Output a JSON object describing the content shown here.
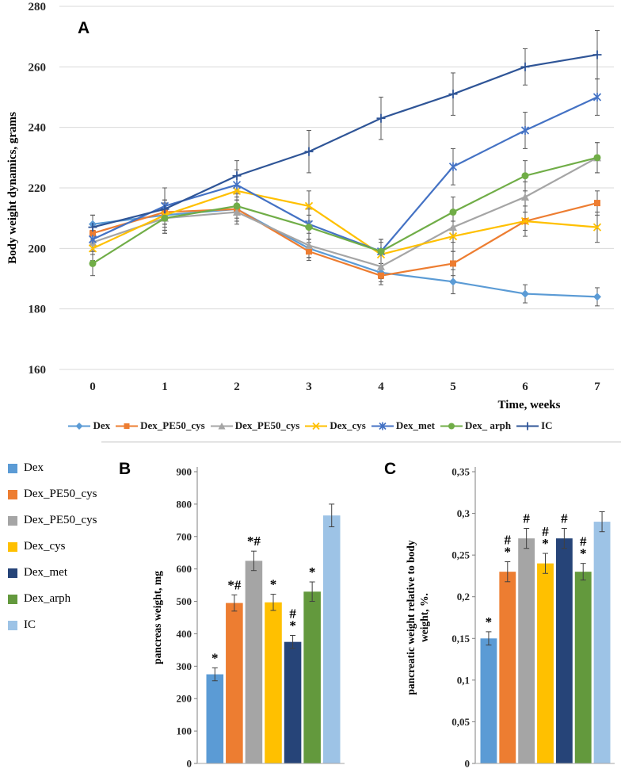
{
  "panels": {
    "a": "A",
    "b": "B",
    "c": "C"
  },
  "side_legend": {
    "items": [
      {
        "label": "Dex",
        "color": "#5B9BD5"
      },
      {
        "label": "Dex_PE50_cys",
        "color": "#ED7D31"
      },
      {
        "label": "Dex_PE50_cys",
        "color": "#A5A5A5"
      },
      {
        "label": "Dex_cys",
        "color": "#FFC000"
      },
      {
        "label": "Dex_met",
        "color": "#264478"
      },
      {
        "label": "Dex_arph",
        "color": "#63993D"
      },
      {
        "label": "IC",
        "color": "#9DC3E6"
      }
    ]
  },
  "chart_data": [
    {
      "id": "body-weight-dynamics",
      "type": "line",
      "title": "",
      "ylabel": "Body weight  dynamics, grams",
      "xlabel": "Time, weeks",
      "ylim": [
        160,
        280
      ],
      "ytick_step": 20,
      "grid": true,
      "legend_position": "bottom",
      "x": [
        0,
        1,
        2,
        3,
        4,
        5,
        6,
        7
      ],
      "series": [
        {
          "name": "Dex",
          "color": "#5B9BD5",
          "marker": "diamond",
          "values": [
            208,
            211,
            213,
            200,
            192,
            189,
            185,
            184
          ],
          "errors": [
            3,
            4,
            4,
            3,
            3,
            4,
            3,
            3
          ]
        },
        {
          "name": "Dex_PE50_cys",
          "color": "#ED7D31",
          "marker": "square",
          "values": [
            205,
            212,
            213,
            199,
            191,
            195,
            209,
            215
          ],
          "errors": [
            3,
            4,
            4,
            3,
            3,
            4,
            3,
            4
          ]
        },
        {
          "name": "Dex_PE50_cys",
          "color": "#A5A5A5",
          "marker": "triangle",
          "values": [
            202,
            210,
            212,
            201,
            194,
            207,
            217,
            230
          ],
          "errors": [
            4,
            5,
            4,
            4,
            4,
            5,
            5,
            5
          ]
        },
        {
          "name": "Dex_cys",
          "color": "#FFC000",
          "marker": "x",
          "values": [
            200,
            211,
            219,
            214,
            198,
            204,
            209,
            207
          ],
          "errors": [
            4,
            5,
            5,
            5,
            4,
            5,
            5,
            5
          ]
        },
        {
          "name": "Dex_met",
          "color": "#4472C4",
          "marker": "star",
          "values": [
            203,
            214,
            221,
            208,
            199,
            227,
            239,
            250
          ],
          "errors": [
            4,
            6,
            5,
            5,
            4,
            6,
            6,
            6
          ]
        },
        {
          "name": "Dex_ arph",
          "color": "#70AD47",
          "marker": "circle",
          "values": [
            195,
            210,
            214,
            207,
            199,
            212,
            224,
            230
          ],
          "errors": [
            4,
            5,
            4,
            4,
            4,
            5,
            5,
            5
          ]
        },
        {
          "name": "IC",
          "color": "#2F5597",
          "marker": "plus",
          "values": [
            207,
            213,
            224,
            232,
            243,
            251,
            260,
            264
          ],
          "errors": [
            4,
            7,
            5,
            7,
            7,
            7,
            6,
            8
          ]
        }
      ]
    },
    {
      "id": "pancreas-weight",
      "type": "bar",
      "ylabel_lines": [
        "pancreas weight, mg"
      ],
      "ylim": [
        0,
        900
      ],
      "ytick_step": 100,
      "decimal_comma": false,
      "categories": [
        "Dex",
        "Dex_PE50_cys",
        "Dex_PE50_cys",
        "Dex_cys",
        "Dex_met",
        "Dex_arph",
        "IC"
      ],
      "values": [
        275,
        495,
        625,
        497,
        375,
        530,
        765
      ],
      "errors": [
        20,
        25,
        30,
        25,
        20,
        30,
        35
      ],
      "colors": [
        "#5B9BD5",
        "#ED7D31",
        "#A5A5A5",
        "#FFC000",
        "#264478",
        "#63993D",
        "#9DC3E6"
      ],
      "annotations": [
        [
          "*"
        ],
        [
          "*#"
        ],
        [
          "*#"
        ],
        [
          "*"
        ],
        [
          "#",
          "*"
        ],
        [
          "*"
        ],
        []
      ]
    },
    {
      "id": "pancreatic-weight-relative-to-body-weight",
      "type": "bar",
      "ylabel_lines": [
        "pancreatic weight relative to body",
        "weight, %."
      ],
      "ylim": [
        0,
        0.35
      ],
      "ytick_step": 0.05,
      "decimal_comma": true,
      "categories": [
        "Dex",
        "Dex_PE50_cys",
        "Dex_PE50_cys",
        "Dex_cys",
        "Dex_met",
        "Dex_arph",
        "IC"
      ],
      "values": [
        0.15,
        0.23,
        0.27,
        0.24,
        0.27,
        0.23,
        0.29
      ],
      "errors": [
        0.008,
        0.012,
        0.012,
        0.012,
        0.012,
        0.01,
        0.012
      ],
      "colors": [
        "#5B9BD5",
        "#ED7D31",
        "#A5A5A5",
        "#FFC000",
        "#264478",
        "#63993D",
        "#9DC3E6"
      ],
      "annotations": [
        [
          "*"
        ],
        [
          "#",
          "*"
        ],
        [
          "#"
        ],
        [
          "#",
          "*"
        ],
        [
          "#"
        ],
        [
          "#",
          "*"
        ],
        []
      ]
    }
  ]
}
